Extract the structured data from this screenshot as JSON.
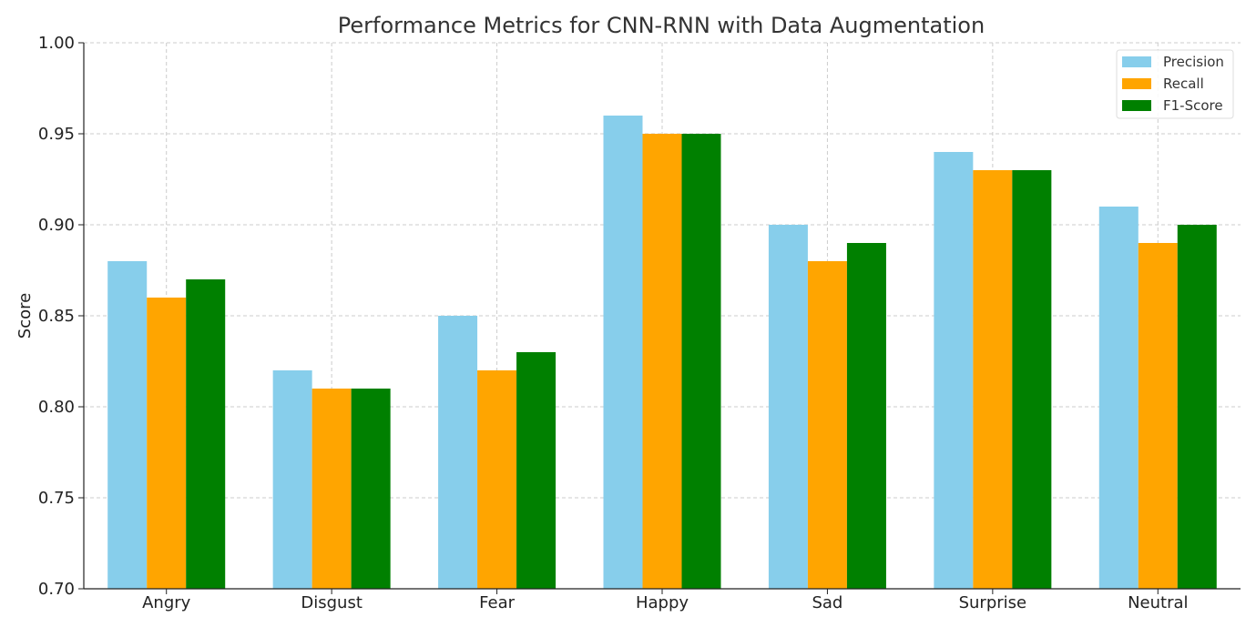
{
  "chart_data": {
    "type": "bar",
    "title": "Performance Metrics for CNN-RNN with Data Augmentation",
    "xlabel": "",
    "ylabel": "Score",
    "ylim": [
      0.7,
      1.0
    ],
    "yticks": [
      "0.70",
      "0.75",
      "0.80",
      "0.85",
      "0.90",
      "0.95",
      "1.00"
    ],
    "categories": [
      "Angry",
      "Disgust",
      "Fear",
      "Happy",
      "Sad",
      "Surprise",
      "Neutral"
    ],
    "grid": true,
    "legend_position": "top-right",
    "series": [
      {
        "name": "Precision",
        "color": "#87ceeb",
        "values": [
          0.88,
          0.82,
          0.85,
          0.96,
          0.9,
          0.94,
          0.91
        ]
      },
      {
        "name": "Recall",
        "color": "#ffa500",
        "values": [
          0.86,
          0.81,
          0.82,
          0.95,
          0.88,
          0.93,
          0.89
        ]
      },
      {
        "name": "F1-Score",
        "color": "#008000",
        "values": [
          0.87,
          0.81,
          0.83,
          0.95,
          0.89,
          0.93,
          0.9
        ]
      }
    ]
  }
}
